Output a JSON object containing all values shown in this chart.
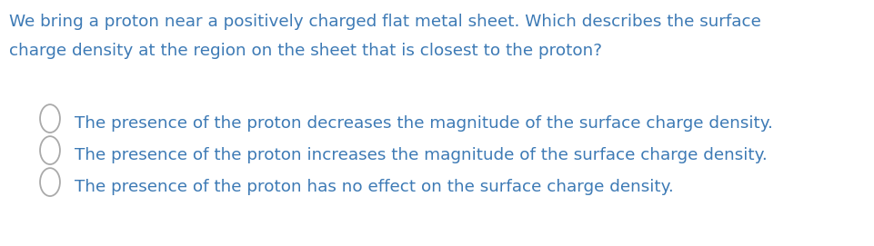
{
  "background_color": "#ffffff",
  "text_color": "#3d7ab5",
  "circle_color": "#aaaaaa",
  "question_line1": "We bring a proton near a positively charged flat metal sheet. Which describes the surface",
  "question_line2": "charge density at the region on the sheet that is closest to the proton?",
  "options": [
    "The presence of the proton decreases the magnitude of the surface charge density.",
    "The presence of the proton increases the magnitude of the surface charge density.",
    "The presence of the proton has no effect on the surface charge density."
  ],
  "question_fontsize": 13.2,
  "option_fontsize": 13.2,
  "figsize": [
    9.61,
    2.71
  ],
  "dpi": 100
}
